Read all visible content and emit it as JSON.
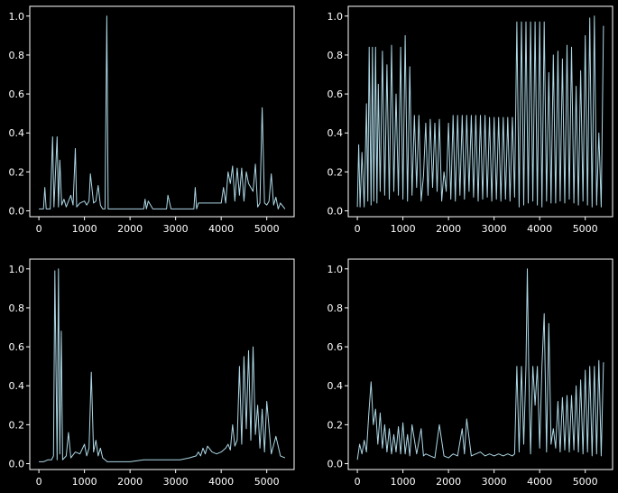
{
  "figure": {
    "background": "#000000",
    "foreground": "#ffffff",
    "line_color": "#add8e6"
  },
  "chart_data": [
    {
      "type": "line",
      "panel": "top-left",
      "xlim": [
        -200,
        5600
      ],
      "ylim": [
        -0.03,
        1.05
      ],
      "xticks": [
        0,
        1000,
        2000,
        3000,
        4000,
        5000
      ],
      "yticks": [
        0.0,
        0.2,
        0.4,
        0.6,
        0.8,
        1.0
      ],
      "xtick_labels": [
        "0",
        "1000",
        "2000",
        "3000",
        "4000",
        "5000"
      ],
      "ytick_labels": [
        "0.0",
        "0.2",
        "0.4",
        "0.6",
        "0.8",
        "1.0"
      ],
      "grid": false,
      "series": [
        {
          "color": "#add8e6",
          "x": [
            0,
            100,
            130,
            160,
            250,
            300,
            330,
            400,
            430,
            460,
            500,
            550,
            600,
            700,
            750,
            800,
            830,
            900,
            1000,
            1050,
            1100,
            1130,
            1200,
            1250,
            1300,
            1350,
            1400,
            1450,
            1490,
            1520,
            1600,
            1800,
            2000,
            2200,
            2300,
            2330,
            2360,
            2400,
            2500,
            2700,
            2800,
            2830,
            2900,
            3000,
            3200,
            3400,
            3430,
            3460,
            3500,
            3700,
            3900,
            4000,
            4050,
            4100,
            4150,
            4200,
            4250,
            4300,
            4350,
            4400,
            4450,
            4500,
            4550,
            4600,
            4700,
            4750,
            4800,
            4850,
            4900,
            4950,
            5000,
            5050,
            5100,
            5150,
            5200,
            5250,
            5300,
            5400
          ],
          "y": [
            0.01,
            0.01,
            0.12,
            0.01,
            0.01,
            0.38,
            0.02,
            0.38,
            0.02,
            0.26,
            0.03,
            0.06,
            0.02,
            0.08,
            0.03,
            0.32,
            0.02,
            0.04,
            0.05,
            0.03,
            0.05,
            0.19,
            0.04,
            0.05,
            0.13,
            0.03,
            0.01,
            0.01,
            1.0,
            0.01,
            0.01,
            0.01,
            0.01,
            0.01,
            0.01,
            0.06,
            0.01,
            0.05,
            0.01,
            0.01,
            0.01,
            0.08,
            0.01,
            0.01,
            0.01,
            0.01,
            0.12,
            0.01,
            0.04,
            0.04,
            0.04,
            0.04,
            0.12,
            0.04,
            0.2,
            0.14,
            0.23,
            0.05,
            0.22,
            0.08,
            0.22,
            0.05,
            0.2,
            0.14,
            0.1,
            0.24,
            0.02,
            0.04,
            0.53,
            0.04,
            0.03,
            0.05,
            0.19,
            0.03,
            0.07,
            0.01,
            0.04,
            0.01
          ]
        }
      ]
    },
    {
      "type": "line",
      "panel": "top-right",
      "xlim": [
        -200,
        5600
      ],
      "ylim": [
        -0.03,
        1.05
      ],
      "xticks": [
        0,
        1000,
        2000,
        3000,
        4000,
        5000
      ],
      "yticks": [
        0.0,
        0.2,
        0.4,
        0.6,
        0.8,
        1.0
      ],
      "xtick_labels": [
        "0",
        "1000",
        "2000",
        "3000",
        "4000",
        "5000"
      ],
      "ytick_labels": [
        "0.0",
        "0.2",
        "0.4",
        "0.6",
        "0.8",
        "1.0"
      ],
      "grid": false,
      "series": [
        {
          "color": "#add8e6",
          "x": [
            0,
            30,
            60,
            100,
            150,
            200,
            230,
            260,
            300,
            330,
            360,
            400,
            430,
            460,
            500,
            550,
            600,
            650,
            700,
            750,
            800,
            850,
            900,
            950,
            1000,
            1050,
            1100,
            1150,
            1200,
            1250,
            1300,
            1350,
            1400,
            1450,
            1500,
            1550,
            1600,
            1650,
            1700,
            1750,
            1800,
            1850,
            1900,
            1950,
            2000,
            2050,
            2100,
            2150,
            2200,
            2250,
            2300,
            2350,
            2400,
            2450,
            2500,
            2550,
            2600,
            2650,
            2700,
            2750,
            2800,
            2850,
            2900,
            2950,
            3000,
            3050,
            3100,
            3150,
            3200,
            3250,
            3300,
            3350,
            3400,
            3450,
            3500,
            3550,
            3600,
            3650,
            3700,
            3750,
            3800,
            3850,
            3900,
            3950,
            4000,
            4050,
            4100,
            4150,
            4200,
            4250,
            4300,
            4350,
            4400,
            4450,
            4500,
            4550,
            4600,
            4650,
            4700,
            4750,
            4800,
            4850,
            4900,
            4950,
            5000,
            5050,
            5100,
            5150,
            5200,
            5250,
            5300,
            5350,
            5400
          ],
          "y": [
            0.02,
            0.34,
            0.02,
            0.3,
            0.02,
            0.55,
            0.05,
            0.84,
            0.03,
            0.84,
            0.05,
            0.84,
            0.04,
            0.65,
            0.1,
            0.82,
            0.08,
            0.75,
            0.06,
            0.85,
            0.1,
            0.6,
            0.08,
            0.84,
            0.06,
            0.9,
            0.05,
            0.74,
            0.08,
            0.49,
            0.12,
            0.49,
            0.05,
            0.18,
            0.45,
            0.08,
            0.47,
            0.12,
            0.45,
            0.1,
            0.47,
            0.05,
            0.2,
            0.1,
            0.45,
            0.06,
            0.49,
            0.05,
            0.49,
            0.08,
            0.49,
            0.06,
            0.49,
            0.1,
            0.49,
            0.07,
            0.49,
            0.05,
            0.49,
            0.06,
            0.49,
            0.07,
            0.48,
            0.05,
            0.48,
            0.06,
            0.48,
            0.05,
            0.48,
            0.06,
            0.48,
            0.05,
            0.48,
            0.07,
            0.97,
            0.02,
            0.97,
            0.03,
            0.97,
            0.04,
            0.97,
            0.05,
            0.97,
            0.03,
            0.97,
            0.02,
            0.97,
            0.05,
            0.71,
            0.04,
            0.8,
            0.04,
            0.82,
            0.05,
            0.78,
            0.04,
            0.85,
            0.06,
            0.84,
            0.04,
            0.64,
            0.03,
            0.72,
            0.05,
            0.9,
            0.03,
            0.99,
            0.02,
            1.0,
            0.03,
            0.4,
            0.02,
            0.95
          ]
        }
      ]
    },
    {
      "type": "line",
      "panel": "bottom-left",
      "xlim": [
        -200,
        5600
      ],
      "ylim": [
        -0.03,
        1.05
      ],
      "xticks": [
        0,
        1000,
        2000,
        3000,
        4000,
        5000
      ],
      "yticks": [
        0.0,
        0.2,
        0.4,
        0.6,
        0.8,
        1.0
      ],
      "xtick_labels": [
        "0",
        "1000",
        "2000",
        "3000",
        "4000",
        "5000"
      ],
      "ytick_labels": [
        "0.0",
        "0.2",
        "0.4",
        "0.6",
        "0.8",
        "1.0"
      ],
      "grid": false,
      "series": [
        {
          "color": "#add8e6",
          "x": [
            0,
            100,
            200,
            280,
            320,
            350,
            400,
            430,
            460,
            490,
            520,
            600,
            650,
            700,
            800,
            900,
            1000,
            1050,
            1100,
            1150,
            1200,
            1250,
            1300,
            1350,
            1400,
            1500,
            1700,
            2000,
            2300,
            2600,
            2900,
            3100,
            3300,
            3450,
            3500,
            3550,
            3600,
            3650,
            3700,
            3800,
            3900,
            4000,
            4100,
            4150,
            4200,
            4250,
            4300,
            4350,
            4400,
            4450,
            4500,
            4550,
            4600,
            4650,
            4700,
            4750,
            4800,
            4850,
            4900,
            4950,
            5000,
            5100,
            5200,
            5300,
            5400
          ],
          "y": [
            0.01,
            0.01,
            0.02,
            0.02,
            0.04,
            0.99,
            0.02,
            1.0,
            0.05,
            0.68,
            0.02,
            0.04,
            0.16,
            0.03,
            0.06,
            0.05,
            0.1,
            0.04,
            0.08,
            0.47,
            0.06,
            0.12,
            0.04,
            0.08,
            0.03,
            0.01,
            0.01,
            0.01,
            0.02,
            0.02,
            0.02,
            0.02,
            0.03,
            0.04,
            0.06,
            0.04,
            0.08,
            0.05,
            0.09,
            0.06,
            0.05,
            0.06,
            0.08,
            0.1,
            0.07,
            0.2,
            0.09,
            0.12,
            0.5,
            0.1,
            0.55,
            0.18,
            0.58,
            0.12,
            0.6,
            0.15,
            0.3,
            0.08,
            0.28,
            0.06,
            0.32,
            0.05,
            0.14,
            0.04,
            0.03
          ]
        }
      ]
    },
    {
      "type": "line",
      "panel": "bottom-right",
      "xlim": [
        -200,
        5600
      ],
      "ylim": [
        -0.03,
        1.05
      ],
      "xticks": [
        0,
        1000,
        2000,
        3000,
        4000,
        5000
      ],
      "yticks": [
        0.0,
        0.2,
        0.4,
        0.6,
        0.8,
        1.0
      ],
      "xtick_labels": [
        "0",
        "1000",
        "2000",
        "3000",
        "4000",
        "5000"
      ],
      "ytick_labels": [
        "0.0",
        "0.2",
        "0.4",
        "0.6",
        "0.8",
        "1.0"
      ],
      "grid": false,
      "series": [
        {
          "color": "#add8e6",
          "x": [
            0,
            50,
            100,
            150,
            200,
            250,
            300,
            350,
            400,
            450,
            500,
            550,
            600,
            650,
            700,
            750,
            800,
            850,
            900,
            950,
            1000,
            1050,
            1100,
            1150,
            1200,
            1300,
            1400,
            1450,
            1500,
            1600,
            1700,
            1800,
            1900,
            2000,
            2100,
            2200,
            2300,
            2350,
            2400,
            2500,
            2600,
            2700,
            2800,
            2900,
            3000,
            3100,
            3200,
            3300,
            3400,
            3450,
            3500,
            3550,
            3600,
            3650,
            3700,
            3730,
            3760,
            3800,
            3850,
            3900,
            3950,
            4000,
            4050,
            4100,
            4150,
            4200,
            4250,
            4300,
            4350,
            4400,
            4450,
            4500,
            4550,
            4600,
            4650,
            4700,
            4750,
            4800,
            4850,
            4900,
            4950,
            5000,
            5050,
            5100,
            5150,
            5200,
            5250,
            5300,
            5350,
            5400
          ],
          "y": [
            0.02,
            0.1,
            0.05,
            0.12,
            0.06,
            0.25,
            0.42,
            0.2,
            0.28,
            0.1,
            0.26,
            0.08,
            0.2,
            0.06,
            0.18,
            0.05,
            0.15,
            0.06,
            0.19,
            0.05,
            0.21,
            0.05,
            0.15,
            0.04,
            0.2,
            0.05,
            0.18,
            0.04,
            0.05,
            0.04,
            0.03,
            0.2,
            0.04,
            0.03,
            0.05,
            0.04,
            0.18,
            0.05,
            0.23,
            0.04,
            0.05,
            0.06,
            0.04,
            0.05,
            0.04,
            0.05,
            0.04,
            0.05,
            0.04,
            0.05,
            0.5,
            0.06,
            0.5,
            0.1,
            0.5,
            1.0,
            0.5,
            0.05,
            0.5,
            0.3,
            0.5,
            0.08,
            0.5,
            0.77,
            0.06,
            0.72,
            0.1,
            0.18,
            0.08,
            0.32,
            0.06,
            0.34,
            0.07,
            0.35,
            0.06,
            0.35,
            0.07,
            0.4,
            0.06,
            0.43,
            0.05,
            0.48,
            0.06,
            0.5,
            0.04,
            0.5,
            0.05,
            0.53,
            0.04,
            0.52
          ]
        }
      ]
    }
  ]
}
